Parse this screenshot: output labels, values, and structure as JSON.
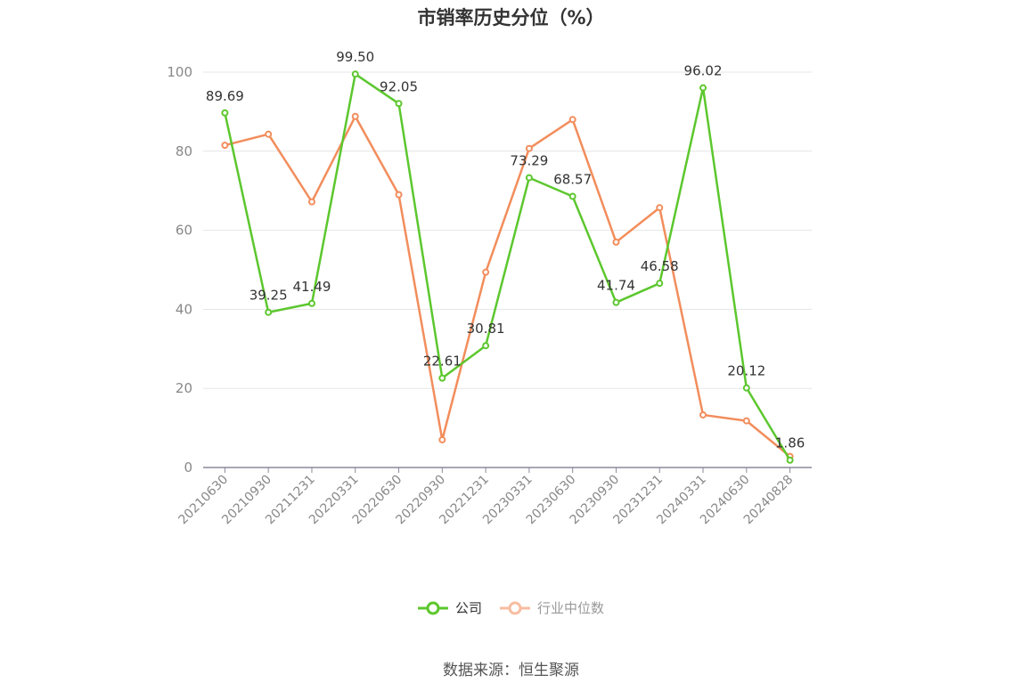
{
  "chart_data": {
    "type": "line",
    "title": "市销率历史分位（%）",
    "categories": [
      "20210630",
      "20210930",
      "20211231",
      "20220331",
      "20220630",
      "20220930",
      "20221231",
      "20230331",
      "20230630",
      "20230930",
      "20231231",
      "20240331",
      "20240630",
      "20240828"
    ],
    "ylim": [
      0,
      100
    ],
    "yticks": [
      0,
      20,
      40,
      60,
      80,
      100
    ],
    "grid": true,
    "legend_position": "bottom",
    "series": [
      {
        "name": "公司",
        "color": "#5cc72e",
        "values": [
          89.69,
          39.25,
          41.49,
          99.5,
          92.05,
          22.61,
          30.81,
          73.29,
          68.57,
          41.74,
          46.58,
          96.02,
          20.12,
          1.86
        ],
        "labels": [
          "89.69",
          "39.25",
          "41.49",
          "99.50",
          "92.05",
          "22.61",
          "30.81",
          "73.29",
          "68.57",
          "41.74",
          "46.58",
          "96.02",
          "20.12",
          "1.86"
        ]
      },
      {
        "name": "行业中位数",
        "color": "#f28d5c",
        "values": [
          81.5,
          84.3,
          67.2,
          88.8,
          69.0,
          7.0,
          49.4,
          80.7,
          88.0,
          57.0,
          65.7,
          13.3,
          11.8,
          2.8
        ]
      }
    ]
  },
  "source_text": "数据来源：恒生聚源"
}
